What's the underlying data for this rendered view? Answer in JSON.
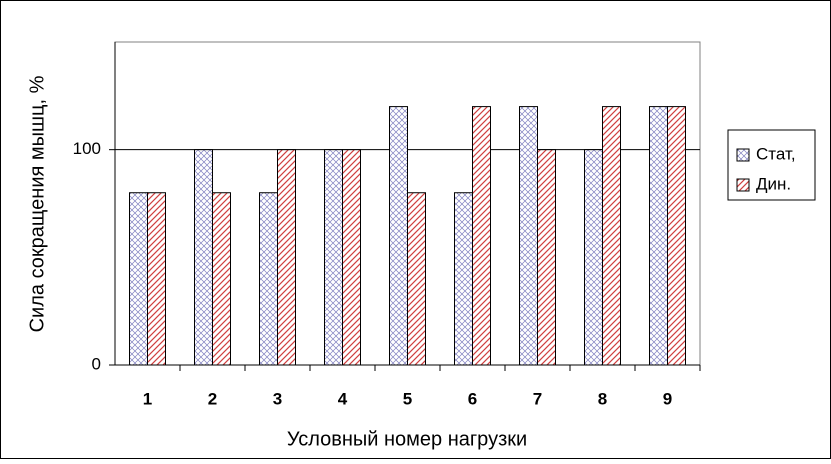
{
  "chart_data": {
    "type": "bar",
    "categories": [
      "1",
      "2",
      "3",
      "4",
      "5",
      "6",
      "7",
      "8",
      "9"
    ],
    "series": [
      {
        "name": "Стат,",
        "color": "#8080c0",
        "values": [
          80,
          100,
          80,
          100,
          120,
          80,
          120,
          100,
          120
        ]
      },
      {
        "name": "Дин.",
        "color": "#d04040",
        "values": [
          80,
          80,
          100,
          100,
          80,
          120,
          100,
          120,
          120
        ]
      }
    ],
    "xlabel": "Условный номер нагрузки",
    "ylabel": "Сила сокращения мышц, %",
    "ylim": [
      0,
      150
    ],
    "yticks": [
      0,
      100
    ],
    "grid": true,
    "legend": "right"
  }
}
